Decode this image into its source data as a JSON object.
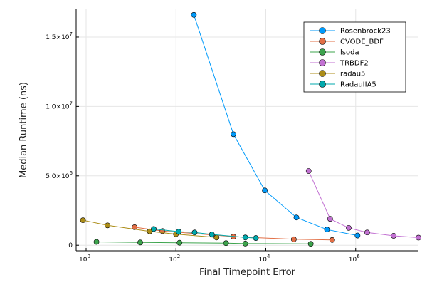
{
  "chart_data": {
    "type": "line",
    "xlabel": "Final Timepoint Error",
    "ylabel": "Median Runtime (ns)",
    "x_scale": "log10",
    "y_scale": "linear",
    "xlim": [
      0.6,
      25000000
    ],
    "ylim": [
      -400000,
      17000000
    ],
    "x_ticks": [
      {
        "value": 1,
        "label": "10",
        "exp": "0"
      },
      {
        "value": 100,
        "label": "10",
        "exp": "2"
      },
      {
        "value": 10000,
        "label": "10",
        "exp": "4"
      },
      {
        "value": 1000000,
        "label": "10",
        "exp": "6"
      }
    ],
    "y_ticks": [
      {
        "value": 0,
        "label": "0",
        "exp": ""
      },
      {
        "value": 5000000,
        "label": "5.0×10",
        "exp": "6"
      },
      {
        "value": 10000000,
        "label": "1.0×10",
        "exp": "7"
      },
      {
        "value": 15000000,
        "label": "1.5×10",
        "exp": "7"
      }
    ],
    "grid": true,
    "legend_position": "top-right",
    "series": [
      {
        "name": "Rosenbrock23",
        "color": "#009AFA",
        "x": [
          250,
          1900,
          9500,
          48000,
          230000,
          1100000
        ],
        "y": [
          16600000,
          8000000,
          3950000,
          2000000,
          1130000,
          700000
        ]
      },
      {
        "name": "CVODE_BDF",
        "color": "#E26F46",
        "x": [
          12,
          50,
          1900,
          42000,
          300000
        ],
        "y": [
          1300000,
          1020000,
          620000,
          430000,
          380000
        ]
      },
      {
        "name": "lsoda",
        "color": "#3DA44D",
        "x": [
          1.7,
          16,
          120,
          1300,
          3500,
          100000
        ],
        "y": [
          240000,
          200000,
          180000,
          150000,
          120000,
          100000
        ]
      },
      {
        "name": "TRBDF2",
        "color": "#C271D2",
        "x": [
          90000,
          270000,
          700000,
          1800000,
          7000000,
          25000000
        ],
        "y": [
          5350000,
          1900000,
          1250000,
          920000,
          680000,
          550000
        ]
      },
      {
        "name": "radau5",
        "color": "#AC8D18",
        "x": [
          0.85,
          3,
          26,
          100,
          800
        ],
        "y": [
          1800000,
          1430000,
          1000000,
          800000,
          560000
        ]
      },
      {
        "name": "RadauIIA5",
        "color": "#00A9AD",
        "x": [
          32,
          115,
          260,
          630,
          3500,
          6000
        ],
        "y": [
          1170000,
          980000,
          920000,
          780000,
          560000,
          520000
        ]
      }
    ]
  }
}
